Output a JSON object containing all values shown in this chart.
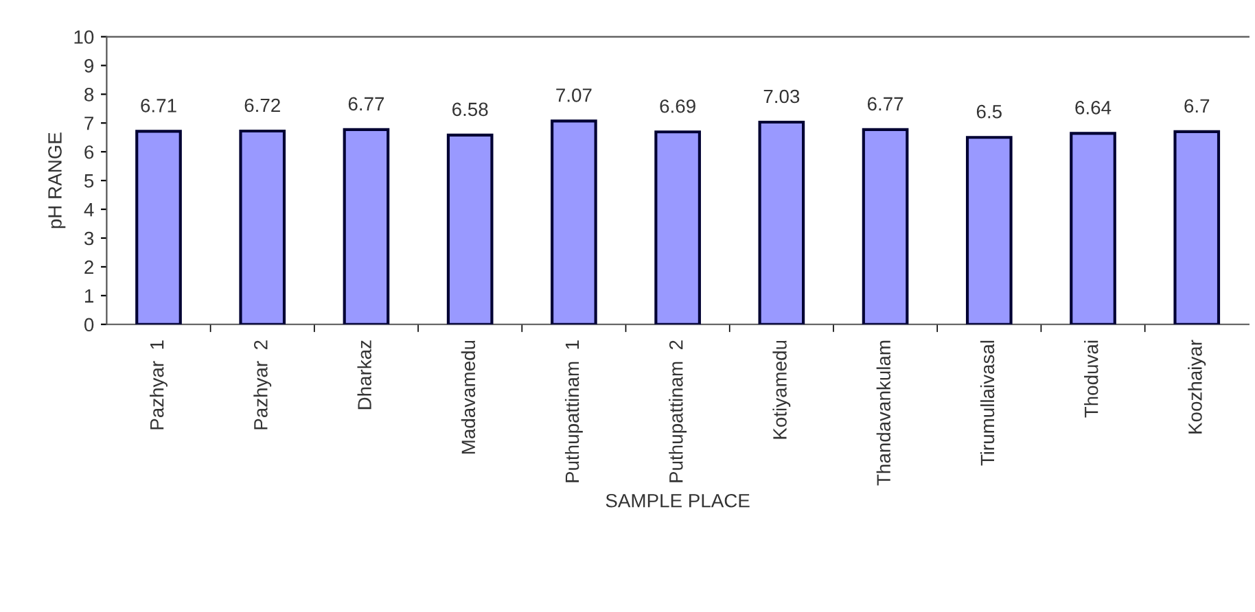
{
  "chart_data": {
    "type": "bar",
    "xlabel": "SAMPLE PLACE",
    "ylabel": "pH RANGE",
    "categories": [
      "Pazhyar  1",
      "Pazhyar  2",
      "Dharkaz",
      "Madavamedu",
      "Puthupattinam  1",
      "Puthupattinam  2",
      "Kotiyamedu",
      "Thandavankulam",
      "Tirumullaivasal",
      "Thoduvai",
      "Koozhaiyar"
    ],
    "values": [
      6.71,
      6.72,
      6.77,
      6.58,
      7.07,
      6.69,
      7.03,
      6.77,
      6.5,
      6.64,
      6.7
    ],
    "color": "#9999ff",
    "ylim": [
      0,
      10
    ],
    "yticks": [
      0,
      1,
      2,
      3,
      4,
      5,
      6,
      7,
      8,
      9,
      10
    ],
    "data_labels": true,
    "grid": false,
    "legend": false
  }
}
